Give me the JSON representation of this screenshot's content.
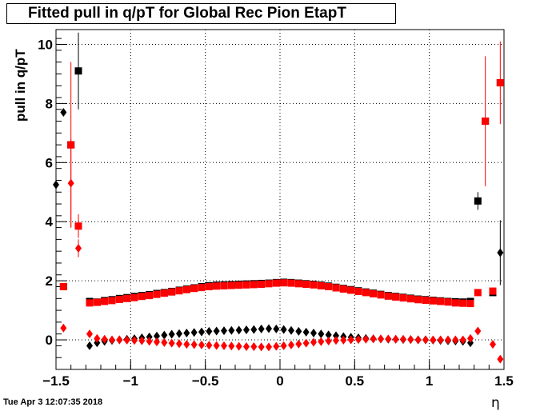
{
  "title": "Fitted pull in q/pT for Global Rec Pion EtapT",
  "timestamp": "Tue Apr  3 12:07:35 2018",
  "chart_data": {
    "type": "scatter",
    "title": "Fitted pull in q/pT for Global Rec Pion EtapT",
    "xlabel": "η",
    "ylabel": "pull in q/pT",
    "xlim": [
      -1.5,
      1.5
    ],
    "ylim": [
      -1.0,
      10.5
    ],
    "xticks": [
      -1.5,
      -1,
      -0.5,
      0,
      0.5,
      1,
      1.5
    ],
    "xtick_labels": [
      "−1.5",
      "−1",
      "−0.5",
      "0",
      "0.5",
      "1",
      "1.5"
    ],
    "yticks": [
      0,
      2,
      4,
      6,
      8,
      10
    ],
    "ytick_labels": [
      "0",
      "2",
      "4",
      "6",
      "8",
      "10"
    ],
    "grid": true,
    "series": [
      {
        "marker": "square",
        "color": "#000000",
        "x": [
          -1.45,
          -1.4,
          -1.35,
          -1.275,
          -1.225,
          -1.175,
          -1.125,
          -1.075,
          -1.025,
          -0.975,
          -0.925,
          -0.875,
          -0.825,
          -0.775,
          -0.725,
          -0.675,
          -0.625,
          -0.575,
          -0.525,
          -0.475,
          -0.425,
          -0.375,
          -0.325,
          -0.275,
          -0.225,
          -0.175,
          -0.125,
          -0.075,
          -0.025,
          0.025,
          0.075,
          0.125,
          0.175,
          0.225,
          0.275,
          0.325,
          0.375,
          0.425,
          0.475,
          0.525,
          0.575,
          0.625,
          0.675,
          0.725,
          0.775,
          0.825,
          0.875,
          0.925,
          0.975,
          1.025,
          1.075,
          1.125,
          1.175,
          1.225,
          1.275,
          1.325,
          1.375,
          1.425,
          1.475
        ],
        "y": [
          1.8,
          6.6,
          9.1,
          1.3,
          1.28,
          1.33,
          1.36,
          1.4,
          1.43,
          1.47,
          1.5,
          1.53,
          1.57,
          1.6,
          1.64,
          1.68,
          1.72,
          1.76,
          1.8,
          1.83,
          1.85,
          1.86,
          1.87,
          1.88,
          1.89,
          1.9,
          1.91,
          1.92,
          1.94,
          1.95,
          1.94,
          1.92,
          1.9,
          1.88,
          1.85,
          1.82,
          1.78,
          1.74,
          1.7,
          1.66,
          1.62,
          1.58,
          1.54,
          1.5,
          1.47,
          1.44,
          1.41,
          1.38,
          1.36,
          1.34,
          1.32,
          1.3,
          1.29,
          1.28,
          1.3,
          4.7,
          7.4,
          1.6,
          8.7
        ],
        "err": [
          0,
          0,
          1.3,
          0,
          0,
          0,
          0,
          0,
          0,
          0,
          0,
          0,
          0,
          0,
          0,
          0,
          0,
          0,
          0,
          0,
          0,
          0,
          0,
          0,
          0,
          0,
          0,
          0,
          0,
          0,
          0,
          0,
          0,
          0,
          0,
          0,
          0,
          0,
          0,
          0,
          0,
          0,
          0,
          0,
          0,
          0,
          0,
          0,
          0,
          0,
          0,
          0,
          0,
          0,
          0,
          0.3,
          0,
          0,
          0
        ]
      },
      {
        "marker": "square",
        "color": "#ff0000",
        "x": [
          -1.45,
          -1.4,
          -1.35,
          -1.275,
          -1.225,
          -1.175,
          -1.125,
          -1.075,
          -1.025,
          -0.975,
          -0.925,
          -0.875,
          -0.825,
          -0.775,
          -0.725,
          -0.675,
          -0.625,
          -0.575,
          -0.525,
          -0.475,
          -0.425,
          -0.375,
          -0.325,
          -0.275,
          -0.225,
          -0.175,
          -0.125,
          -0.075,
          -0.025,
          0.025,
          0.075,
          0.125,
          0.175,
          0.225,
          0.275,
          0.325,
          0.375,
          0.425,
          0.475,
          0.525,
          0.575,
          0.625,
          0.675,
          0.725,
          0.775,
          0.825,
          0.875,
          0.925,
          0.975,
          1.025,
          1.075,
          1.125,
          1.175,
          1.225,
          1.275,
          1.325,
          1.375,
          1.425,
          1.475
        ],
        "y": [
          1.8,
          6.6,
          3.85,
          1.25,
          1.27,
          1.3,
          1.33,
          1.37,
          1.4,
          1.43,
          1.47,
          1.5,
          1.54,
          1.58,
          1.62,
          1.66,
          1.7,
          1.74,
          1.77,
          1.8,
          1.82,
          1.83,
          1.84,
          1.85,
          1.86,
          1.87,
          1.88,
          1.9,
          1.92,
          1.93,
          1.92,
          1.9,
          1.88,
          1.86,
          1.83,
          1.8,
          1.76,
          1.72,
          1.68,
          1.64,
          1.6,
          1.56,
          1.52,
          1.48,
          1.45,
          1.42,
          1.39,
          1.36,
          1.34,
          1.32,
          1.3,
          1.28,
          1.25,
          1.24,
          1.23,
          1.6,
          7.4,
          1.65,
          8.7
        ],
        "err": [
          0,
          2.8,
          0.4,
          0,
          0,
          0,
          0,
          0,
          0,
          0,
          0,
          0,
          0,
          0,
          0,
          0,
          0,
          0,
          0,
          0,
          0,
          0,
          0,
          0,
          0,
          0,
          0,
          0,
          0,
          0,
          0,
          0,
          0,
          0,
          0,
          0,
          0,
          0,
          0,
          0,
          0,
          0,
          0,
          0,
          0,
          0,
          0,
          0,
          0,
          0,
          0,
          0,
          0,
          0,
          0,
          0,
          2.2,
          0,
          1.4
        ]
      },
      {
        "marker": "diamond",
        "color": "#000000",
        "x": [
          -1.5,
          -1.45,
          -1.275,
          -1.225,
          -1.175,
          -1.125,
          -1.075,
          -1.025,
          -0.975,
          -0.925,
          -0.875,
          -0.825,
          -0.775,
          -0.725,
          -0.675,
          -0.625,
          -0.575,
          -0.525,
          -0.475,
          -0.425,
          -0.375,
          -0.325,
          -0.275,
          -0.225,
          -0.175,
          -0.125,
          -0.075,
          -0.025,
          0.025,
          0.075,
          0.125,
          0.175,
          0.225,
          0.275,
          0.325,
          0.375,
          0.425,
          0.475,
          0.525,
          0.575,
          0.625,
          0.675,
          0.725,
          0.775,
          0.825,
          0.875,
          0.925,
          0.975,
          1.025,
          1.075,
          1.125,
          1.175,
          1.225,
          1.275,
          1.475
        ],
        "y": [
          5.25,
          7.7,
          -0.2,
          -0.1,
          -0.05,
          -0.02,
          0,
          0.02,
          0.04,
          0.07,
          0.1,
          0.13,
          0.16,
          0.19,
          0.21,
          0.23,
          0.25,
          0.27,
          0.29,
          0.3,
          0.31,
          0.32,
          0.33,
          0.34,
          0.35,
          0.37,
          0.38,
          0.37,
          0.35,
          0.32,
          0.29,
          0.26,
          0.23,
          0.2,
          0.17,
          0.14,
          0.11,
          0.09,
          0.07,
          0.05,
          0.04,
          0.03,
          0.02,
          0.02,
          0.01,
          0.01,
          0.0,
          0.0,
          -0.01,
          -0.02,
          -0.03,
          -0.04,
          -0.05,
          -0.1,
          2.95
        ],
        "err": [
          0,
          0,
          0,
          0,
          0,
          0,
          0,
          0,
          0,
          0,
          0,
          0,
          0,
          0,
          0,
          0,
          0,
          0,
          0,
          0,
          0,
          0,
          0,
          0,
          0,
          0,
          0,
          0,
          0,
          0,
          0,
          0,
          0,
          0,
          0,
          0,
          0,
          0,
          0,
          0,
          0,
          0,
          0,
          0,
          0,
          0,
          0,
          0,
          0,
          0,
          0,
          0,
          0,
          0,
          1.1
        ]
      },
      {
        "marker": "diamond",
        "color": "#ff0000",
        "x": [
          -1.45,
          -1.4,
          -1.35,
          -1.275,
          -1.225,
          -1.175,
          -1.125,
          -1.075,
          -1.025,
          -0.975,
          -0.925,
          -0.875,
          -0.825,
          -0.775,
          -0.725,
          -0.675,
          -0.625,
          -0.575,
          -0.525,
          -0.475,
          -0.425,
          -0.375,
          -0.325,
          -0.275,
          -0.225,
          -0.175,
          -0.125,
          -0.075,
          -0.025,
          0.025,
          0.075,
          0.125,
          0.175,
          0.225,
          0.275,
          0.325,
          0.375,
          0.425,
          0.475,
          0.525,
          0.575,
          0.625,
          0.675,
          0.725,
          0.775,
          0.825,
          0.875,
          0.925,
          0.975,
          1.025,
          1.075,
          1.125,
          1.175,
          1.225,
          1.275,
          1.325,
          1.425,
          1.475
        ],
        "y": [
          0.4,
          5.3,
          3.1,
          0.2,
          0.05,
          0.02,
          0.0,
          0.0,
          -0.01,
          -0.02,
          -0.03,
          -0.05,
          -0.07,
          -0.09,
          -0.11,
          -0.13,
          -0.15,
          -0.16,
          -0.17,
          -0.18,
          -0.19,
          -0.2,
          -0.21,
          -0.22,
          -0.23,
          -0.23,
          -0.24,
          -0.24,
          -0.22,
          -0.2,
          -0.17,
          -0.14,
          -0.11,
          -0.08,
          -0.06,
          -0.04,
          -0.02,
          -0.01,
          0.0,
          0.01,
          0.02,
          0.03,
          0.03,
          0.03,
          0.02,
          0.02,
          0.01,
          0.0,
          0.0,
          0.0,
          0.0,
          0.0,
          0.0,
          0.0,
          0.05,
          0.3,
          -0.15,
          -0.65
        ],
        "err": [
          0,
          1.5,
          0.3,
          0,
          0,
          0,
          0,
          0,
          0,
          0,
          0,
          0,
          0,
          0,
          0,
          0,
          0,
          0,
          0,
          0,
          0,
          0,
          0,
          0,
          0,
          0,
          0,
          0,
          0,
          0,
          0,
          0,
          0,
          0,
          0,
          0,
          0,
          0,
          0,
          0,
          0,
          0,
          0,
          0,
          0,
          0,
          0,
          0,
          0,
          0,
          0,
          0,
          0,
          0,
          0,
          0,
          0,
          0
        ]
      }
    ]
  }
}
